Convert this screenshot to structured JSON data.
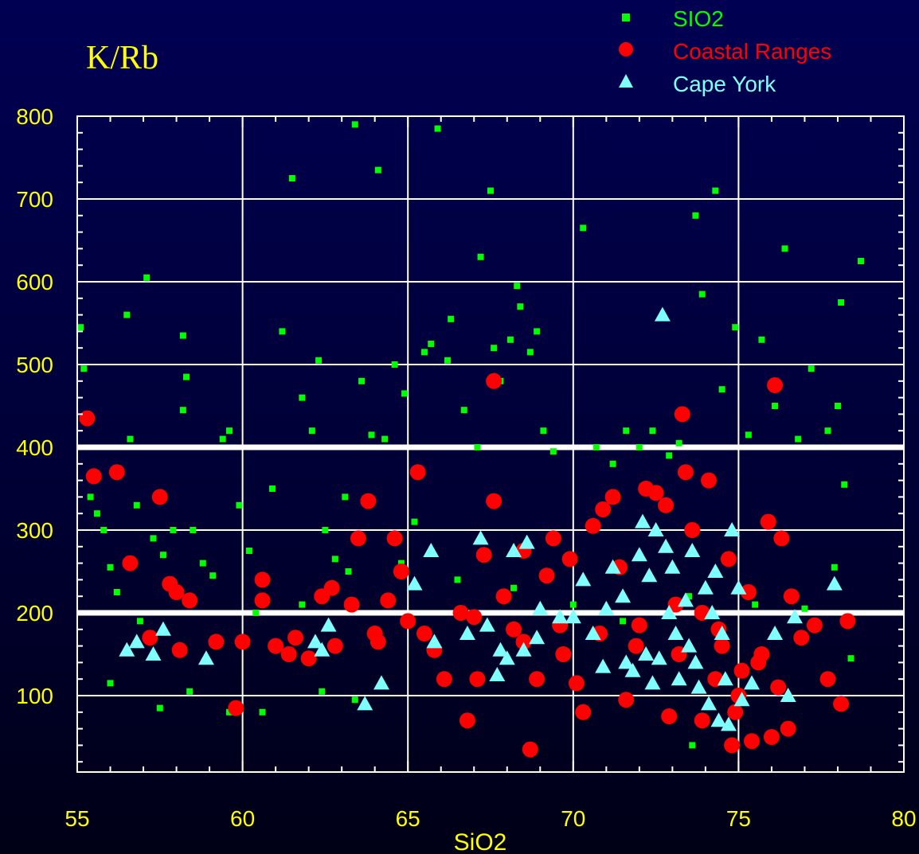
{
  "chart_data": {
    "type": "scatter",
    "title": "K/Rb",
    "xlabel": "SiO2",
    "ylabel": "",
    "xlim": [
      55,
      80
    ],
    "ylim": [
      20,
      800
    ],
    "x_ticks": [
      55,
      60,
      65,
      70,
      75,
      80
    ],
    "y_ticks": [
      100,
      200,
      300,
      400,
      500,
      600,
      700,
      800
    ],
    "grid": true,
    "reference_lines_y": [
      200,
      400
    ],
    "legend_position": "top-right",
    "colors": {
      "background": "#000040",
      "text": "#ffff00",
      "axes": "#ffffff",
      "grid": "#ffffff"
    },
    "series": [
      {
        "name": "SIO2",
        "marker": "square",
        "color": "#00ff00",
        "points": [
          [
            55.1,
            545
          ],
          [
            55.2,
            495
          ],
          [
            55.3,
            440
          ],
          [
            55.4,
            340
          ],
          [
            55.6,
            320
          ],
          [
            55.8,
            300
          ],
          [
            56.0,
            255
          ],
          [
            56.2,
            225
          ],
          [
            56.5,
            560
          ],
          [
            56.6,
            410
          ],
          [
            56.8,
            330
          ],
          [
            57.1,
            605
          ],
          [
            57.3,
            290
          ],
          [
            57.6,
            270
          ],
          [
            57.9,
            300
          ],
          [
            58.2,
            535
          ],
          [
            58.3,
            485
          ],
          [
            58.2,
            445
          ],
          [
            58.5,
            300
          ],
          [
            58.8,
            260
          ],
          [
            59.1,
            245
          ],
          [
            59.4,
            410
          ],
          [
            59.6,
            420
          ],
          [
            59.9,
            330
          ],
          [
            60.2,
            275
          ],
          [
            60.6,
            80
          ],
          [
            60.9,
            350
          ],
          [
            61.2,
            540
          ],
          [
            61.5,
            725
          ],
          [
            61.8,
            460
          ],
          [
            62.1,
            420
          ],
          [
            62.3,
            505
          ],
          [
            62.5,
            300
          ],
          [
            62.8,
            265
          ],
          [
            63.1,
            340
          ],
          [
            63.4,
            790
          ],
          [
            63.6,
            480
          ],
          [
            63.9,
            415
          ],
          [
            64.1,
            735
          ],
          [
            64.3,
            410
          ],
          [
            64.6,
            500
          ],
          [
            64.9,
            465
          ],
          [
            65.2,
            310
          ],
          [
            65.5,
            515
          ],
          [
            65.7,
            525
          ],
          [
            65.9,
            785
          ],
          [
            66.2,
            505
          ],
          [
            66.3,
            555
          ],
          [
            66.7,
            445
          ],
          [
            67.1,
            400
          ],
          [
            67.2,
            630
          ],
          [
            67.5,
            710
          ],
          [
            67.6,
            520
          ],
          [
            67.8,
            480
          ],
          [
            68.1,
            530
          ],
          [
            68.3,
            595
          ],
          [
            68.4,
            570
          ],
          [
            68.7,
            515
          ],
          [
            68.9,
            540
          ],
          [
            69.1,
            420
          ],
          [
            69.4,
            395
          ],
          [
            70.3,
            665
          ],
          [
            70.7,
            400
          ],
          [
            71.2,
            380
          ],
          [
            71.6,
            420
          ],
          [
            72.0,
            400
          ],
          [
            72.4,
            420
          ],
          [
            72.9,
            390
          ],
          [
            73.2,
            405
          ],
          [
            73.7,
            680
          ],
          [
            73.9,
            585
          ],
          [
            74.3,
            710
          ],
          [
            74.5,
            470
          ],
          [
            74.9,
            545
          ],
          [
            75.3,
            415
          ],
          [
            75.7,
            530
          ],
          [
            76.1,
            450
          ],
          [
            76.4,
            640
          ],
          [
            76.8,
            410
          ],
          [
            77.2,
            495
          ],
          [
            77.7,
            420
          ],
          [
            78.0,
            450
          ],
          [
            78.1,
            575
          ],
          [
            78.7,
            625
          ],
          [
            78.2,
            355
          ],
          [
            77.9,
            255
          ],
          [
            78.4,
            145
          ],
          [
            56.0,
            115
          ],
          [
            58.4,
            105
          ],
          [
            59.6,
            80
          ],
          [
            62.4,
            105
          ],
          [
            63.4,
            95
          ],
          [
            73.6,
            40
          ],
          [
            57.5,
            85
          ],
          [
            56.9,
            190
          ],
          [
            60.4,
            200
          ],
          [
            61.8,
            210
          ],
          [
            63.2,
            250
          ],
          [
            64.8,
            260
          ],
          [
            66.5,
            240
          ],
          [
            68.2,
            230
          ],
          [
            70.0,
            210
          ],
          [
            71.5,
            190
          ],
          [
            73.5,
            220
          ],
          [
            75.5,
            210
          ],
          [
            77.0,
            205
          ]
        ]
      },
      {
        "name": "Coastal Ranges",
        "marker": "circle",
        "color": "#ff0000",
        "points": [
          [
            55.3,
            435
          ],
          [
            55.5,
            365
          ],
          [
            56.2,
            370
          ],
          [
            56.6,
            260
          ],
          [
            57.2,
            170
          ],
          [
            57.5,
            340
          ],
          [
            57.8,
            235
          ],
          [
            58.0,
            225
          ],
          [
            58.1,
            155
          ],
          [
            58.4,
            215
          ],
          [
            59.8,
            85
          ],
          [
            60.0,
            165
          ],
          [
            60.6,
            240
          ],
          [
            60.6,
            215
          ],
          [
            61.0,
            160
          ],
          [
            61.6,
            170
          ],
          [
            62.0,
            145
          ],
          [
            62.4,
            220
          ],
          [
            62.7,
            230
          ],
          [
            63.3,
            210
          ],
          [
            63.5,
            290
          ],
          [
            63.8,
            335
          ],
          [
            64.1,
            165
          ],
          [
            64.4,
            215
          ],
          [
            64.6,
            290
          ],
          [
            64.8,
            250
          ],
          [
            65.0,
            190
          ],
          [
            65.3,
            370
          ],
          [
            65.8,
            155
          ],
          [
            66.1,
            120
          ],
          [
            66.6,
            200
          ],
          [
            66.8,
            70
          ],
          [
            67.1,
            120
          ],
          [
            67.3,
            270
          ],
          [
            67.6,
            335
          ],
          [
            67.6,
            480
          ],
          [
            67.9,
            220
          ],
          [
            68.2,
            180
          ],
          [
            68.5,
            275
          ],
          [
            68.7,
            35
          ],
          [
            68.9,
            120
          ],
          [
            69.2,
            245
          ],
          [
            69.4,
            290
          ],
          [
            69.6,
            185
          ],
          [
            69.9,
            265
          ],
          [
            70.1,
            115
          ],
          [
            70.3,
            80
          ],
          [
            70.6,
            305
          ],
          [
            70.9,
            325
          ],
          [
            71.2,
            340
          ],
          [
            71.4,
            255
          ],
          [
            71.6,
            95
          ],
          [
            71.9,
            160
          ],
          [
            72.2,
            350
          ],
          [
            72.5,
            345
          ],
          [
            72.8,
            330
          ],
          [
            73.1,
            210
          ],
          [
            73.3,
            440
          ],
          [
            73.4,
            370
          ],
          [
            73.6,
            300
          ],
          [
            73.9,
            200
          ],
          [
            74.1,
            360
          ],
          [
            74.3,
            120
          ],
          [
            74.5,
            160
          ],
          [
            74.7,
            265
          ],
          [
            74.9,
            80
          ],
          [
            75.1,
            130
          ],
          [
            75.3,
            225
          ],
          [
            75.6,
            140
          ],
          [
            75.9,
            310
          ],
          [
            76.1,
            475
          ],
          [
            76.3,
            290
          ],
          [
            76.6,
            220
          ],
          [
            76.9,
            170
          ],
          [
            77.3,
            185
          ],
          [
            77.7,
            120
          ],
          [
            78.1,
            90
          ],
          [
            78.3,
            190
          ],
          [
            74.8,
            40
          ],
          [
            75.4,
            45
          ],
          [
            76.0,
            50
          ],
          [
            76.5,
            60
          ],
          [
            73.9,
            70
          ],
          [
            72.9,
            75
          ],
          [
            75.0,
            100
          ],
          [
            76.2,
            110
          ],
          [
            75.7,
            150
          ],
          [
            74.4,
            180
          ],
          [
            73.2,
            150
          ],
          [
            72.0,
            185
          ],
          [
            70.8,
            175
          ],
          [
            69.7,
            150
          ],
          [
            68.5,
            165
          ],
          [
            67.0,
            195
          ],
          [
            65.5,
            175
          ],
          [
            64.0,
            175
          ],
          [
            62.8,
            160
          ],
          [
            61.4,
            150
          ],
          [
            59.2,
            165
          ]
        ]
      },
      {
        "name": "Cape York",
        "marker": "triangle",
        "color": "#80ffff",
        "points": [
          [
            56.5,
            155
          ],
          [
            56.8,
            165
          ],
          [
            57.3,
            150
          ],
          [
            57.6,
            180
          ],
          [
            58.9,
            145
          ],
          [
            62.2,
            165
          ],
          [
            62.4,
            155
          ],
          [
            62.6,
            185
          ],
          [
            63.7,
            90
          ],
          [
            64.2,
            115
          ],
          [
            65.2,
            235
          ],
          [
            65.7,
            275
          ],
          [
            65.8,
            165
          ],
          [
            66.8,
            175
          ],
          [
            67.2,
            290
          ],
          [
            67.4,
            185
          ],
          [
            67.7,
            125
          ],
          [
            67.8,
            155
          ],
          [
            68.0,
            145
          ],
          [
            68.2,
            275
          ],
          [
            68.5,
            155
          ],
          [
            68.6,
            285
          ],
          [
            68.9,
            170
          ],
          [
            69.0,
            205
          ],
          [
            69.6,
            195
          ],
          [
            70.0,
            195
          ],
          [
            70.3,
            240
          ],
          [
            70.6,
            175
          ],
          [
            70.9,
            135
          ],
          [
            71.0,
            205
          ],
          [
            71.2,
            255
          ],
          [
            71.5,
            220
          ],
          [
            71.6,
            140
          ],
          [
            71.8,
            130
          ],
          [
            72.0,
            270
          ],
          [
            72.1,
            310
          ],
          [
            72.2,
            150
          ],
          [
            72.3,
            245
          ],
          [
            72.4,
            115
          ],
          [
            72.5,
            300
          ],
          [
            72.6,
            145
          ],
          [
            72.7,
            560
          ],
          [
            72.8,
            280
          ],
          [
            72.9,
            200
          ],
          [
            73.0,
            255
          ],
          [
            73.1,
            175
          ],
          [
            73.2,
            120
          ],
          [
            73.4,
            215
          ],
          [
            73.5,
            160
          ],
          [
            73.6,
            275
          ],
          [
            73.7,
            140
          ],
          [
            73.8,
            110
          ],
          [
            74.0,
            230
          ],
          [
            74.1,
            90
          ],
          [
            74.2,
            200
          ],
          [
            74.3,
            250
          ],
          [
            74.4,
            70
          ],
          [
            74.5,
            175
          ],
          [
            74.6,
            120
          ],
          [
            74.7,
            65
          ],
          [
            74.8,
            300
          ],
          [
            75.0,
            230
          ],
          [
            75.1,
            95
          ],
          [
            75.4,
            115
          ],
          [
            76.1,
            175
          ],
          [
            76.5,
            100
          ],
          [
            76.7,
            195
          ],
          [
            77.9,
            235
          ]
        ]
      }
    ]
  }
}
